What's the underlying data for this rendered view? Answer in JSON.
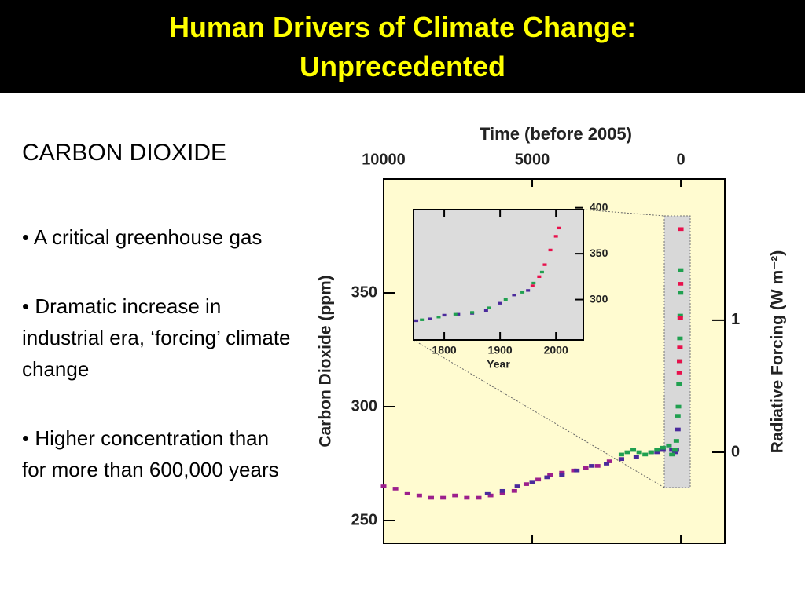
{
  "slide": {
    "title_lines": [
      "Human Drivers of Climate Change:",
      "Unprecedented"
    ],
    "heading": "CARBON DIOXIDE",
    "bullets": [
      "• A critical greenhouse gas",
      "• Dramatic increase in industrial era, ‘forcing’ climate change",
      "• Higher concentration than for more than 600,000 years"
    ]
  },
  "chart_data": [
    {
      "type": "scatter",
      "title": "Time (before 2005)",
      "ylabel": "Carbon Dioxide (ppm)",
      "y2label": "Radiative Forcing (W m⁻²)",
      "xlim": [
        10000,
        -1480
      ],
      "xticks": [
        10000,
        5000,
        0
      ],
      "ylim": [
        240,
        400
      ],
      "yticks": [
        250,
        300,
        350
      ],
      "y2lim": [
        -0.69,
        2.07
      ],
      "y2ticks": [
        0,
        1
      ],
      "series": [
        {
          "color": "#9c1f8c",
          "x": [
            10000,
            9600,
            9200,
            8800,
            8400,
            8000,
            7600,
            7200,
            6800,
            6400,
            6000,
            5600,
            5200,
            4800,
            4400,
            4000,
            3600,
            3200,
            2800,
            2400,
            2000
          ],
          "values": [
            265,
            264,
            262,
            261,
            260,
            260,
            261,
            260,
            260,
            261,
            262,
            263,
            266,
            268,
            270,
            271,
            272,
            273,
            274,
            276,
            277
          ]
        },
        {
          "color": "#4a2a9c",
          "x": [
            6500,
            6000,
            5500,
            5000,
            4500,
            4000,
            3500,
            3000,
            2500,
            2000,
            1500,
            1000,
            800,
            600,
            400,
            300,
            200,
            150,
            100,
            50
          ],
          "values": [
            262,
            263,
            265,
            267,
            269,
            270,
            272,
            274,
            275,
            277,
            278,
            280,
            280,
            281,
            283,
            281,
            280,
            281,
            290,
            310
          ]
        },
        {
          "color": "#20a050",
          "x": [
            2000,
            1800,
            1600,
            1400,
            1200,
            1000,
            800,
            600,
            400,
            300,
            200,
            150,
            100,
            80,
            60,
            40,
            30,
            20,
            10,
            5
          ],
          "values": [
            279,
            280,
            281,
            280,
            279,
            280,
            281,
            282,
            283,
            279,
            281,
            285,
            296,
            300,
            310,
            320,
            330,
            340,
            350,
            360
          ]
        },
        {
          "color": "#e8104c",
          "x": [
            47,
            40,
            30,
            20,
            10,
            0
          ],
          "values": [
            315,
            320,
            326,
            339,
            354,
            378
          ]
        }
      ]
    },
    {
      "type": "scatter",
      "xlabel": "Year",
      "xlim": [
        1745,
        2049
      ],
      "xticks": [
        1800,
        1900,
        2000
      ],
      "ylim": [
        256,
        398
      ],
      "yticks": [
        300,
        350,
        400
      ],
      "series": [
        {
          "color": "#4a2a9c",
          "x": [
            1750,
            1775,
            1800,
            1825,
            1850,
            1875,
            1900,
            1925,
            1950
          ],
          "values": [
            277,
            279,
            283,
            284,
            285,
            288,
            296,
            305,
            310
          ]
        },
        {
          "color": "#20a050",
          "x": [
            1760,
            1790,
            1820,
            1850,
            1880,
            1910,
            1940,
            1960,
            1975
          ],
          "values": [
            278,
            281,
            284,
            286,
            291,
            300,
            308,
            318,
            330
          ]
        },
        {
          "color": "#e8104c",
          "x": [
            1958,
            1970,
            1980,
            1990,
            2000,
            2005
          ],
          "values": [
            315,
            325,
            338,
            354,
            369,
            378
          ]
        }
      ]
    }
  ]
}
